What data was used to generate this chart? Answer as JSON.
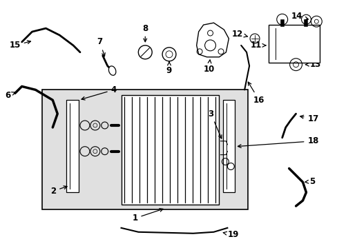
{
  "background_color": "#ffffff",
  "box_bg": "#e0e0e0",
  "line_color": "#000000",
  "figsize": [
    4.89,
    3.6
  ],
  "dpi": 100
}
